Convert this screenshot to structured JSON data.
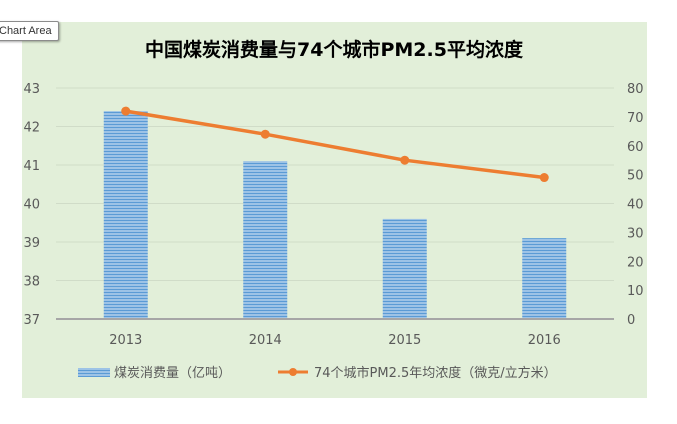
{
  "tooltip": "Chart Area",
  "colors": {
    "background": "#e2efd9",
    "bar": "#9dc3e6",
    "bar_stripe": "#5b9bd5",
    "line": "#ed7d31",
    "axis": "#a6a6a6",
    "grid": "#d0dcc8",
    "text": "#595959",
    "title": "#000000"
  },
  "chart_data": {
    "type": "bar+line",
    "title": "中国煤炭消费量与74个城市PM2.5平均浓度",
    "categories": [
      "2013",
      "2014",
      "2015",
      "2016"
    ],
    "series": [
      {
        "name": "煤炭消费量（亿吨）",
        "type": "bar",
        "axis": "left",
        "values": [
          42.4,
          41.1,
          39.6,
          39.1
        ]
      },
      {
        "name": "74个城市PM2.5年均浓度（微克/立方米）",
        "type": "line",
        "axis": "right",
        "values": [
          72,
          64,
          55,
          49
        ]
      }
    ],
    "y_left": {
      "min": 37,
      "max": 43,
      "ticks": [
        "37",
        "38",
        "39",
        "40",
        "41",
        "42",
        "43"
      ]
    },
    "y_right": {
      "min": 0,
      "max": 80,
      "ticks": [
        "0",
        "10",
        "20",
        "30",
        "40",
        "50",
        "60",
        "70",
        "80"
      ]
    },
    "grid": true,
    "legend_position": "bottom"
  }
}
